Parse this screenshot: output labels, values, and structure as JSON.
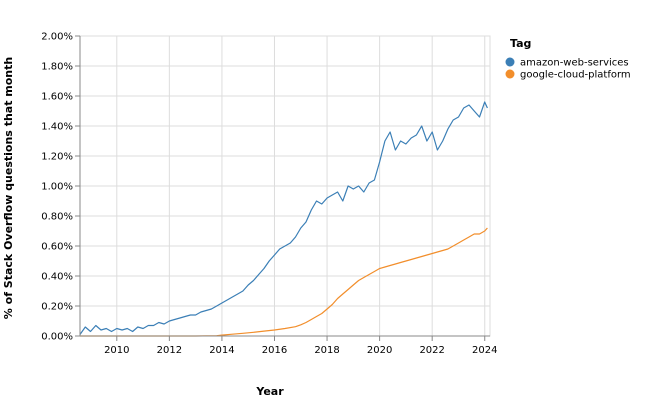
{
  "chart_data": {
    "type": "line",
    "xlabel": "Year",
    "ylabel": "% of Stack Overflow questions that month",
    "xlim": [
      2008.6,
      2024.2
    ],
    "ylim": [
      0,
      2.0
    ],
    "x_ticks": [
      2010,
      2012,
      2014,
      2016,
      2018,
      2020,
      2022,
      2024
    ],
    "x_tick_labels": [
      "2010",
      "2012",
      "2014",
      "2016",
      "2018",
      "2020",
      "2022",
      "2024"
    ],
    "y_ticks": [
      0,
      0.2,
      0.4,
      0.6,
      0.8,
      1.0,
      1.2,
      1.4,
      1.6,
      1.8,
      2.0
    ],
    "y_tick_labels": [
      "0.00%",
      "0.20%",
      "0.40%",
      "0.60%",
      "0.80%",
      "1.00%",
      "1.20%",
      "1.40%",
      "1.60%",
      "1.80%",
      "2.00%"
    ],
    "grid": true,
    "legend": {
      "title": "Tag",
      "placement": "right"
    },
    "series": [
      {
        "name": "amazon-web-services",
        "color": "#3b7fb6",
        "x": [
          2008.6,
          2008.8,
          2009.0,
          2009.2,
          2009.4,
          2009.6,
          2009.8,
          2010.0,
          2010.2,
          2010.4,
          2010.6,
          2010.8,
          2011.0,
          2011.2,
          2011.4,
          2011.6,
          2011.8,
          2012.0,
          2012.2,
          2012.4,
          2012.6,
          2012.8,
          2013.0,
          2013.2,
          2013.4,
          2013.6,
          2013.8,
          2014.0,
          2014.2,
          2014.4,
          2014.6,
          2014.8,
          2015.0,
          2015.2,
          2015.4,
          2015.6,
          2015.8,
          2016.0,
          2016.2,
          2016.4,
          2016.6,
          2016.8,
          2017.0,
          2017.2,
          2017.4,
          2017.6,
          2017.8,
          2018.0,
          2018.2,
          2018.4,
          2018.6,
          2018.8,
          2019.0,
          2019.2,
          2019.4,
          2019.6,
          2019.8,
          2020.0,
          2020.2,
          2020.4,
          2020.6,
          2020.8,
          2021.0,
          2021.2,
          2021.4,
          2021.6,
          2021.8,
          2022.0,
          2022.2,
          2022.4,
          2022.6,
          2022.8,
          2023.0,
          2023.2,
          2023.4,
          2023.6,
          2023.8,
          2024.0,
          2024.1
        ],
        "y": [
          0.01,
          0.06,
          0.03,
          0.07,
          0.04,
          0.05,
          0.03,
          0.05,
          0.04,
          0.05,
          0.03,
          0.06,
          0.05,
          0.07,
          0.07,
          0.09,
          0.08,
          0.1,
          0.11,
          0.12,
          0.13,
          0.14,
          0.14,
          0.16,
          0.17,
          0.18,
          0.2,
          0.22,
          0.24,
          0.26,
          0.28,
          0.3,
          0.34,
          0.37,
          0.41,
          0.45,
          0.5,
          0.54,
          0.58,
          0.6,
          0.62,
          0.66,
          0.72,
          0.76,
          0.84,
          0.9,
          0.88,
          0.92,
          0.94,
          0.96,
          0.9,
          1.0,
          0.98,
          1.0,
          0.96,
          1.02,
          1.04,
          1.16,
          1.3,
          1.36,
          1.24,
          1.3,
          1.28,
          1.32,
          1.34,
          1.4,
          1.3,
          1.36,
          1.24,
          1.3,
          1.38,
          1.44,
          1.46,
          1.52,
          1.54,
          1.5,
          1.46,
          1.56,
          1.52
        ]
      },
      {
        "name": "google-cloud-platform",
        "color": "#f28e2b",
        "x": [
          2008.6,
          2010.0,
          2011.0,
          2012.0,
          2013.0,
          2013.8,
          2014.0,
          2014.4,
          2014.8,
          2015.2,
          2015.6,
          2016.0,
          2016.4,
          2016.8,
          2017.0,
          2017.2,
          2017.4,
          2017.6,
          2017.8,
          2018.0,
          2018.2,
          2018.4,
          2018.6,
          2018.8,
          2019.0,
          2019.2,
          2019.4,
          2019.6,
          2019.8,
          2020.0,
          2020.2,
          2020.4,
          2020.6,
          2020.8,
          2021.0,
          2021.2,
          2021.4,
          2021.6,
          2021.8,
          2022.0,
          2022.2,
          2022.4,
          2022.6,
          2022.8,
          2023.0,
          2023.2,
          2023.4,
          2023.6,
          2023.8,
          2024.0,
          2024.1
        ],
        "y": [
          0.0,
          0.0,
          0.0,
          0.0,
          0.0,
          0.002,
          0.006,
          0.012,
          0.018,
          0.025,
          0.033,
          0.04,
          0.05,
          0.062,
          0.075,
          0.09,
          0.11,
          0.13,
          0.15,
          0.18,
          0.21,
          0.25,
          0.28,
          0.31,
          0.34,
          0.37,
          0.39,
          0.41,
          0.43,
          0.45,
          0.46,
          0.47,
          0.48,
          0.49,
          0.5,
          0.51,
          0.52,
          0.53,
          0.54,
          0.55,
          0.56,
          0.57,
          0.58,
          0.6,
          0.62,
          0.64,
          0.66,
          0.68,
          0.68,
          0.7,
          0.72
        ]
      }
    ]
  }
}
